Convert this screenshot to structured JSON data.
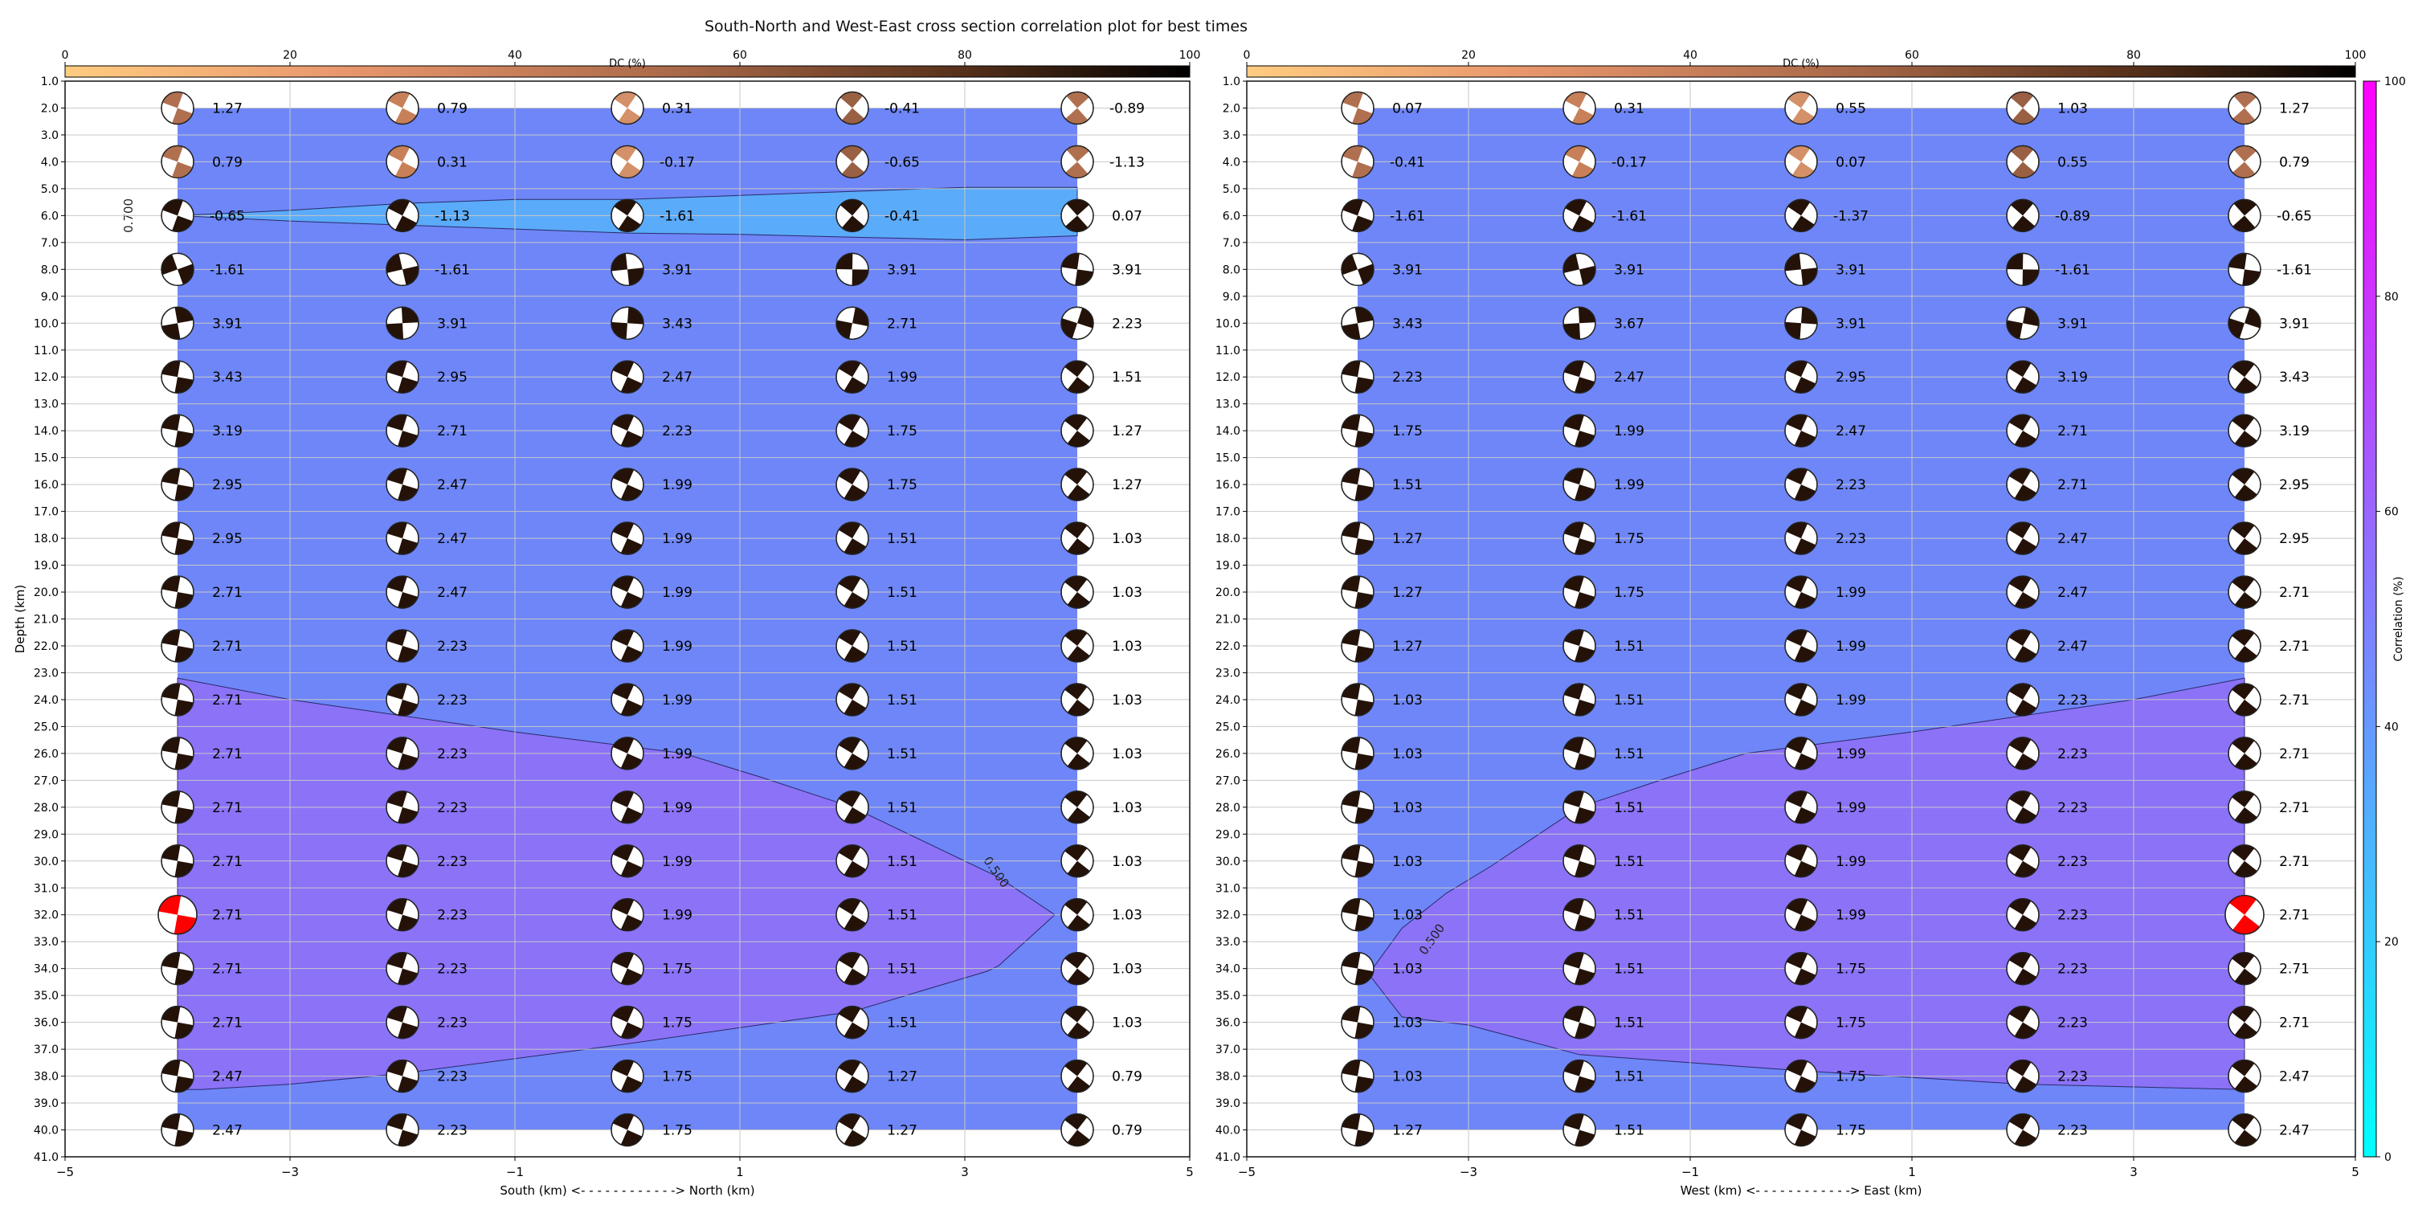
{
  "title": "South-North and West-East cross section correlation plot for best times",
  "colors": {
    "plane": "#6e86f7",
    "zone_low": "#5aabfa",
    "zone_mid": "#8b72f7",
    "beach_dark": "#241208",
    "best_fit": "#ff0000",
    "grid": "#c8c8c8"
  },
  "chart_data": [
    {
      "type": "beachball-correlation",
      "panel": "south-north",
      "xlabel": "South (km) <- - - - - - - - - - - -> North (km)",
      "ylabel": "Depth (km)",
      "xlim": [
        -5,
        5
      ],
      "ylim": [
        1,
        41
      ],
      "x_ticks": [
        -5,
        -3,
        -1,
        1,
        3,
        5
      ],
      "y_ticks": [
        1.0,
        2.0,
        3.0,
        4.0,
        5.0,
        6.0,
        7.0,
        8.0,
        9.0,
        10.0,
        11.0,
        12.0,
        13.0,
        14.0,
        15.0,
        16.0,
        17.0,
        18.0,
        19.0,
        20.0,
        21.0,
        22.0,
        23.0,
        24.0,
        25.0,
        26.0,
        27.0,
        28.0,
        29.0,
        30.0,
        31.0,
        32.0,
        33.0,
        34.0,
        35.0,
        36.0,
        37.0,
        38.0,
        39.0,
        40.0,
        41.0
      ],
      "grid": true,
      "colorbar": {
        "label": "DC (%)",
        "orientation": "horizontal",
        "range": [
          0,
          100
        ],
        "ticks": [
          0,
          20,
          40,
          60,
          80,
          100
        ]
      },
      "x": [
        -4,
        -2,
        0,
        2,
        4
      ],
      "depths": [
        2,
        4,
        6,
        8,
        10,
        12,
        14,
        16,
        18,
        20,
        22,
        24,
        26,
        28,
        30,
        32,
        34,
        36,
        38,
        40
      ],
      "time_labels": [
        [
          "1.27",
          "0.79",
          "0.31",
          "-0.41",
          "-0.89"
        ],
        [
          "0.79",
          "0.31",
          "-0.17",
          "-0.65",
          "-1.13"
        ],
        [
          "-0.65",
          "-1.13",
          "-1.61",
          "-0.41",
          "0.07"
        ],
        [
          "-1.61",
          "-1.61",
          "3.91",
          "3.91",
          "3.91"
        ],
        [
          "3.91",
          "3.91",
          "3.43",
          "2.71",
          "2.23"
        ],
        [
          "3.43",
          "2.95",
          "2.47",
          "1.99",
          "1.51"
        ],
        [
          "3.19",
          "2.71",
          "2.23",
          "1.75",
          "1.27"
        ],
        [
          "2.95",
          "2.47",
          "1.99",
          "1.75",
          "1.27"
        ],
        [
          "2.95",
          "2.47",
          "1.99",
          "1.51",
          "1.03"
        ],
        [
          "2.71",
          "2.47",
          "1.99",
          "1.51",
          "1.03"
        ],
        [
          "2.71",
          "2.23",
          "1.99",
          "1.51",
          "1.03"
        ],
        [
          "2.71",
          "2.23",
          "1.99",
          "1.51",
          "1.03"
        ],
        [
          "2.71",
          "2.23",
          "1.99",
          "1.51",
          "1.03"
        ],
        [
          "2.71",
          "2.23",
          "1.99",
          "1.51",
          "1.03"
        ],
        [
          "2.71",
          "2.23",
          "1.99",
          "1.51",
          "1.03"
        ],
        [
          "2.71",
          "2.23",
          "1.99",
          "1.51",
          "1.03"
        ],
        [
          "2.71",
          "2.23",
          "1.75",
          "1.51",
          "1.03"
        ],
        [
          "2.71",
          "2.23",
          "1.75",
          "1.51",
          "1.03"
        ],
        [
          "2.47",
          "2.23",
          "1.75",
          "1.27",
          "0.79"
        ],
        [
          "2.47",
          "2.23",
          "1.75",
          "1.27",
          "0.79"
        ]
      ],
      "best_solution": {
        "x": -4,
        "depth": 32
      },
      "contours": [
        {
          "level_label": "0.700",
          "label_at": [
            -4.4,
            6.0
          ],
          "polygon": [
            [
              -4,
              6.0
            ],
            [
              -3,
              5.8
            ],
            [
              -2,
              5.55
            ],
            [
              -1,
              5.4
            ],
            [
              0,
              5.4
            ],
            [
              1,
              5.25
            ],
            [
              2,
              5.1
            ],
            [
              3,
              4.95
            ],
            [
              4,
              4.95
            ],
            [
              4,
              6.75
            ],
            [
              3,
              6.9
            ],
            [
              2,
              6.8
            ],
            [
              1,
              6.7
            ],
            [
              0,
              6.65
            ],
            [
              -1,
              6.5
            ],
            [
              -2,
              6.35
            ],
            [
              -3,
              6.2
            ],
            [
              -4,
              6.0
            ]
          ]
        },
        {
          "level_label": "0.500",
          "label_at": [
            3.25,
            30.5
          ],
          "polygon": [
            [
              -4,
              23.2
            ],
            [
              -3,
              24.0
            ],
            [
              -2,
              24.6
            ],
            [
              -1,
              25.2
            ],
            [
              0.5,
              26.0
            ],
            [
              1.2,
              26.9
            ],
            [
              2,
              28.0
            ],
            [
              3.3,
              30.6
            ],
            [
              3.8,
              32.0
            ],
            [
              3.3,
              33.9
            ],
            [
              3.2,
              34.1
            ],
            [
              2,
              35.6
            ],
            [
              0,
              36.8
            ],
            [
              -2,
              37.9
            ],
            [
              -3,
              38.3
            ],
            [
              -3.8,
              38.5
            ],
            [
              -4,
              38.5
            ]
          ]
        }
      ]
    },
    {
      "type": "beachball-correlation",
      "panel": "west-east",
      "xlabel": "West (km) <- - - - - - - - - - - -> East (km)",
      "ylabel": "",
      "xlim": [
        -5,
        5
      ],
      "ylim": [
        1,
        41
      ],
      "x_ticks": [
        -5,
        -3,
        -1,
        1,
        3,
        5
      ],
      "y_ticks": [
        1.0,
        2.0,
        3.0,
        4.0,
        5.0,
        6.0,
        7.0,
        8.0,
        9.0,
        10.0,
        11.0,
        12.0,
        13.0,
        14.0,
        15.0,
        16.0,
        17.0,
        18.0,
        19.0,
        20.0,
        21.0,
        22.0,
        23.0,
        24.0,
        25.0,
        26.0,
        27.0,
        28.0,
        29.0,
        30.0,
        31.0,
        32.0,
        33.0,
        34.0,
        35.0,
        36.0,
        37.0,
        38.0,
        39.0,
        40.0,
        41.0
      ],
      "grid": true,
      "colorbar": {
        "label": "DC (%)",
        "orientation": "horizontal",
        "range": [
          0,
          100
        ],
        "ticks": [
          0,
          20,
          40,
          60,
          80,
          100
        ]
      },
      "x": [
        -4,
        -2,
        0,
        2,
        4
      ],
      "depths": [
        2,
        4,
        6,
        8,
        10,
        12,
        14,
        16,
        18,
        20,
        22,
        24,
        26,
        28,
        30,
        32,
        34,
        36,
        38,
        40
      ],
      "time_labels": [
        [
          "0.07",
          "0.31",
          "0.55",
          "1.03",
          "1.27"
        ],
        [
          "-0.41",
          "-0.17",
          "0.07",
          "0.55",
          "0.79"
        ],
        [
          "-1.61",
          "-1.61",
          "-1.37",
          "-0.89",
          "-0.65"
        ],
        [
          "3.91",
          "3.91",
          "3.91",
          "-1.61",
          "-1.61"
        ],
        [
          "3.43",
          "3.67",
          "3.91",
          "3.91",
          "3.91"
        ],
        [
          "2.23",
          "2.47",
          "2.95",
          "3.19",
          "3.43"
        ],
        [
          "1.75",
          "1.99",
          "2.47",
          "2.71",
          "3.19"
        ],
        [
          "1.51",
          "1.99",
          "2.23",
          "2.71",
          "2.95"
        ],
        [
          "1.27",
          "1.75",
          "2.23",
          "2.47",
          "2.95"
        ],
        [
          "1.27",
          "1.75",
          "1.99",
          "2.47",
          "2.71"
        ],
        [
          "1.27",
          "1.51",
          "1.99",
          "2.47",
          "2.71"
        ],
        [
          "1.03",
          "1.51",
          "1.99",
          "2.23",
          "2.71"
        ],
        [
          "1.03",
          "1.51",
          "1.99",
          "2.23",
          "2.71"
        ],
        [
          "1.03",
          "1.51",
          "1.99",
          "2.23",
          "2.71"
        ],
        [
          "1.03",
          "1.51",
          "1.99",
          "2.23",
          "2.71"
        ],
        [
          "1.03",
          "1.51",
          "1.99",
          "2.23",
          "2.71"
        ],
        [
          "1.03",
          "1.51",
          "1.75",
          "2.23",
          "2.71"
        ],
        [
          "1.03",
          "1.51",
          "1.75",
          "2.23",
          "2.71"
        ],
        [
          "1.03",
          "1.51",
          "1.75",
          "2.23",
          "2.47"
        ],
        [
          "1.27",
          "1.51",
          "1.75",
          "2.23",
          "2.47"
        ]
      ],
      "best_solution": {
        "x": 4,
        "depth": 32
      },
      "contours": [
        {
          "level_label": "0.500",
          "label_at": [
            -3.3,
            33.0
          ],
          "polygon": [
            [
              4,
              23.2
            ],
            [
              3,
              24.0
            ],
            [
              2,
              24.6
            ],
            [
              1,
              25.2
            ],
            [
              -0.5,
              26.0
            ],
            [
              -1.2,
              26.9
            ],
            [
              -2,
              28.0
            ],
            [
              -2.8,
              30.2
            ],
            [
              -3.2,
              31.2
            ],
            [
              -3.6,
              32.5
            ],
            [
              -3.9,
              34.2
            ],
            [
              -3.6,
              35.8
            ],
            [
              -3,
              36.1
            ],
            [
              -2,
              37.2
            ],
            [
              0,
              37.8
            ],
            [
              2,
              38.3
            ],
            [
              3,
              38.4
            ],
            [
              4,
              38.5
            ]
          ]
        }
      ]
    }
  ],
  "correlation_colorbar": {
    "label": "Correlation (%)",
    "range": [
      0,
      100
    ],
    "ticks": [
      0,
      20,
      40,
      60,
      80,
      100
    ]
  }
}
